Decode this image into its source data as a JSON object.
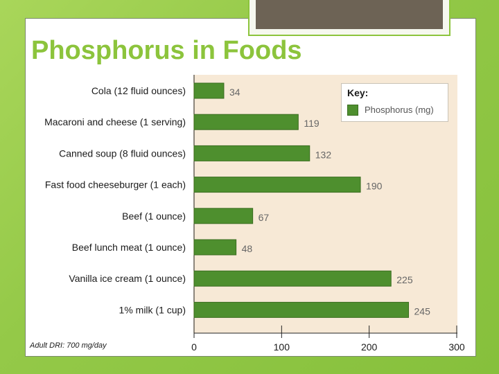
{
  "slide": {
    "title": "Phosphorus in Foods",
    "footnote": "Adult DRI: 700 mg/day"
  },
  "colors": {
    "bar": "#4e8f2e",
    "title": "#8cc43c",
    "plot_background": "#f7e9d6"
  },
  "chart_data": {
    "type": "bar",
    "orientation": "horizontal",
    "categories": [
      "Cola (12 fluid ounces)",
      "Macaroni and cheese (1 serving)",
      "Canned soup (8 fluid ounces)",
      "Fast food cheeseburger (1 each)",
      "Beef (1 ounce)",
      "Beef lunch meat (1 ounce)",
      "Vanilla ice cream (1 ounce)",
      "1% milk (1 cup)"
    ],
    "series": [
      {
        "name": "Phosphorus (mg)",
        "values": [
          34,
          119,
          132,
          190,
          67,
          48,
          225,
          245
        ]
      }
    ],
    "xlim": [
      0,
      300
    ],
    "xticks": [
      0,
      100,
      200,
      300
    ],
    "legend": {
      "title": "Key:",
      "position": "top-right"
    },
    "grid": false
  }
}
